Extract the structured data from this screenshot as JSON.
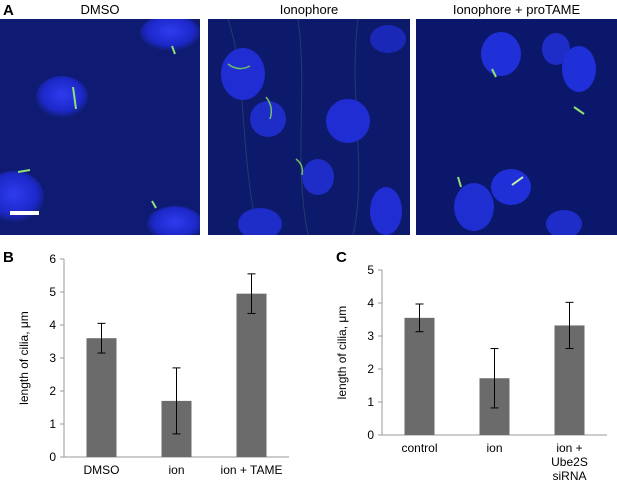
{
  "panel_a": {
    "letter": "A",
    "images": [
      {
        "title": "DMSO"
      },
      {
        "title": "Ionophore"
      },
      {
        "title": "Ionophore + proTAME"
      }
    ]
  },
  "panel_b": {
    "letter": "B"
  },
  "panel_c": {
    "letter": "C"
  },
  "chart_data": [
    {
      "type": "bar",
      "categories": [
        "DMSO",
        "ion",
        "ion + TAME"
      ],
      "values": [
        3.6,
        1.7,
        4.95
      ],
      "errors": [
        0.45,
        1.0,
        0.6
      ],
      "ylabel": "length of cilia, μm",
      "ylim": [
        0,
        6
      ],
      "yticks": [
        "0",
        "1",
        "2",
        "3",
        "4",
        "5",
        "6"
      ],
      "bar_color": "#6b6b6b"
    },
    {
      "type": "bar",
      "categories": [
        [
          "control"
        ],
        [
          "ion"
        ],
        [
          "ion +",
          "Ube2S",
          "siRNA"
        ]
      ],
      "values": [
        3.55,
        1.72,
        3.32
      ],
      "errors": [
        0.42,
        0.9,
        0.7
      ],
      "ylabel": "length of cilia, μm",
      "ylim": [
        0,
        5
      ],
      "yticks": [
        "0",
        "1",
        "2",
        "3",
        "4",
        "5"
      ],
      "bar_color": "#6b6b6b"
    }
  ]
}
